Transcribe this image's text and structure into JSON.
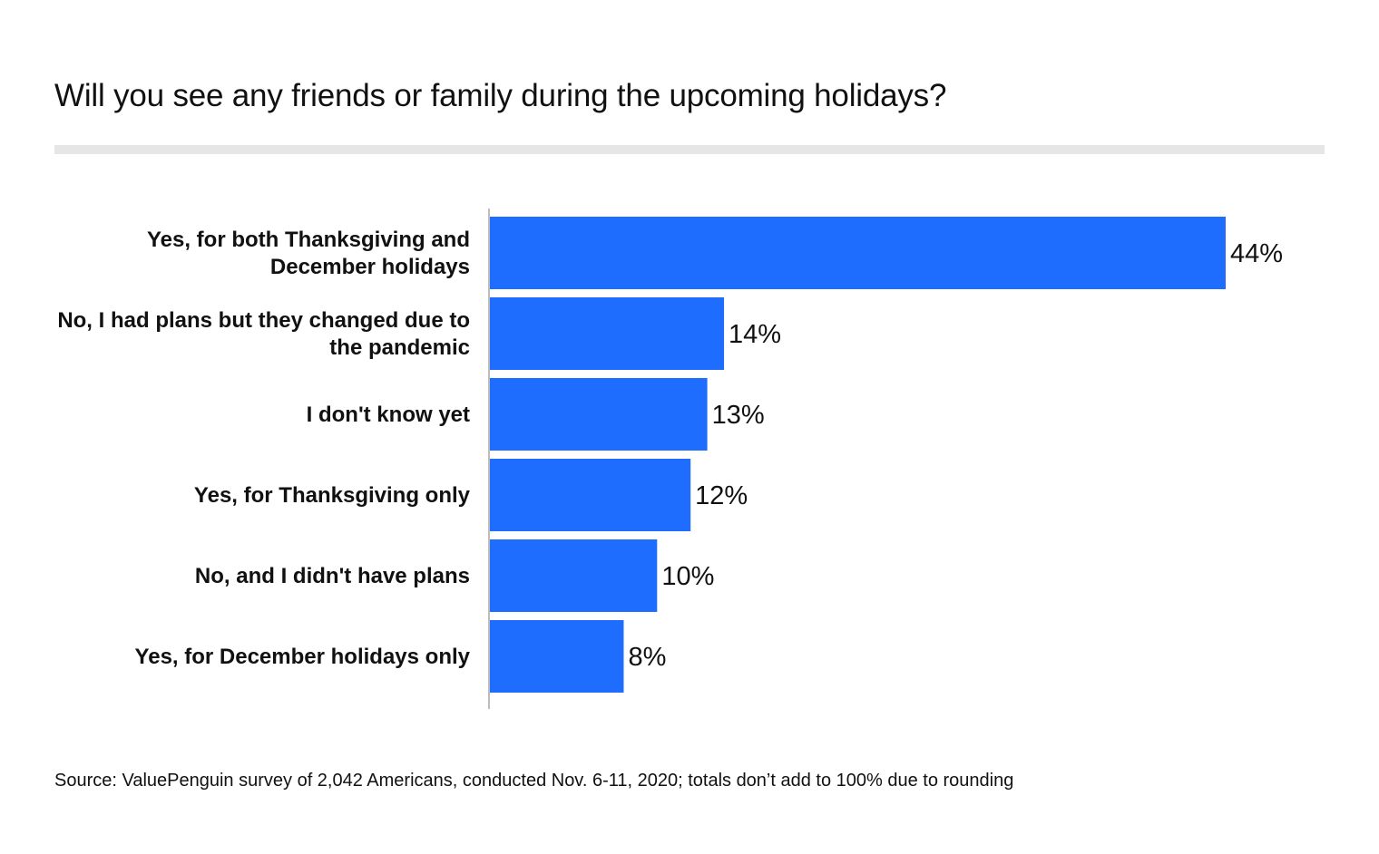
{
  "colors": {
    "bar": "#1f6dff",
    "axis": "#bdbdbd",
    "rule": "#e6e6e6"
  },
  "chart_data": {
    "type": "bar",
    "orientation": "horizontal",
    "title": "Will you see any friends or family during the upcoming holidays?",
    "categories": [
      [
        "Yes, for both Thanksgiving and",
        "December holidays"
      ],
      [
        "No, I had plans but they changed due to",
        "the pandemic"
      ],
      [
        "I don't know yet"
      ],
      [
        "Yes, for Thanksgiving only"
      ],
      [
        "No, and I didn't have plans"
      ],
      [
        "Yes, for December holidays only"
      ]
    ],
    "values": [
      44,
      14,
      13,
      12,
      10,
      8
    ],
    "value_labels": [
      "44%",
      "14%",
      "13%",
      "12%",
      "10%",
      "8%"
    ],
    "unit": "%",
    "xlim": [
      0,
      44
    ],
    "xlabel": "",
    "ylabel": "",
    "grid": false
  },
  "source": "Source: ValuePenguin survey of 2,042 Americans, conducted Nov. 6-11, 2020; totals don’t add to 100% due to rounding"
}
